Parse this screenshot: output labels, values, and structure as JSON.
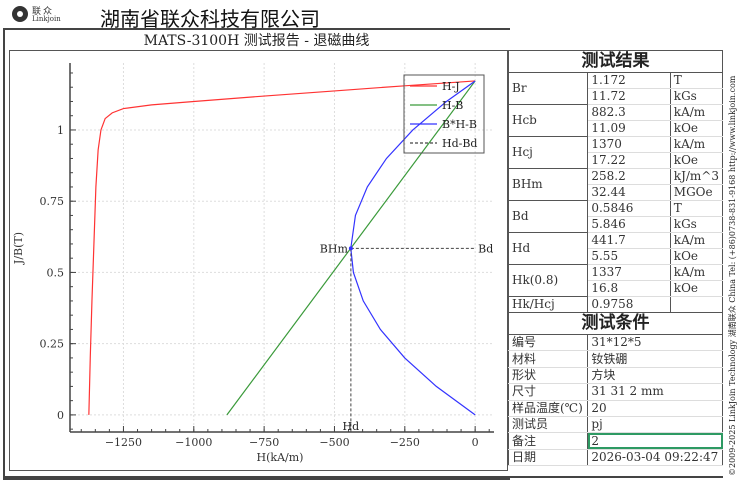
{
  "header": {
    "logo_cn": "联众",
    "logo_en": "Linkjoin",
    "company": "湖南省联众科技有限公司"
  },
  "report_title": "MATS-3100H 测试报告 - 退磁曲线",
  "side_text": "©2009-2025 LinkJoin Technology 湖南联众 China Tel: (+86)0738-831-9168 http://www.linkjoin.com",
  "results": {
    "title": "测试结果",
    "rows": [
      {
        "label": "Br",
        "v1": "1.172",
        "u1": "T",
        "v2": "11.72",
        "u2": "kGs"
      },
      {
        "label": "Hcb",
        "v1": "882.3",
        "u1": "kA/m",
        "v2": "11.09",
        "u2": "kOe"
      },
      {
        "label": "Hcj",
        "v1": "1370",
        "u1": "kA/m",
        "v2": "17.22",
        "u2": "kOe"
      },
      {
        "label": "BHm",
        "v1": "258.2",
        "u1": "kJ/m^3",
        "v2": "32.44",
        "u2": "MGOe"
      },
      {
        "label": "Bd",
        "v1": "0.5846",
        "u1": "T",
        "v2": "5.846",
        "u2": "kGs"
      },
      {
        "label": "Hd",
        "v1": "441.7",
        "u1": "kA/m",
        "v2": "5.55",
        "u2": "kOe"
      },
      {
        "label": "Hk(0.8)",
        "v1": "1337",
        "u1": "kA/m",
        "v2": "16.8",
        "u2": "kOe"
      }
    ],
    "ratio": {
      "label": "Hk/Hcj",
      "value": "0.9758"
    }
  },
  "conditions": {
    "title": "测试条件",
    "rows": [
      {
        "label": "编号",
        "value": "31*12*5"
      },
      {
        "label": "材料",
        "value": "钕铁硼"
      },
      {
        "label": "形状",
        "value": "方块"
      },
      {
        "label": "尺寸",
        "value": "31 31 2 mm"
      },
      {
        "label": "样品温度(℃)",
        "value": "20"
      },
      {
        "label": "测试员",
        "value": "pj"
      },
      {
        "label": "备注",
        "value": "2"
      },
      {
        "label": "日期",
        "value": "2026-03-04 09:22:47"
      }
    ]
  },
  "chart_data": {
    "type": "line",
    "xlabel": "H(kA/m)",
    "ylabel": "J/B(T)",
    "xlim": [
      -1440,
      67
    ],
    "ylim": [
      -0.06,
      1.235
    ],
    "xticks": [
      -1250,
      -1000,
      -750,
      -500,
      -250,
      0
    ],
    "xtick_labels": [
      "−1250",
      "−1000",
      "−750",
      "−500",
      "−250",
      "0"
    ],
    "yticks": [
      0,
      0.25,
      0.5,
      0.75,
      1
    ],
    "ytick_labels": [
      "0",
      "0.25",
      "0.5",
      "0.75",
      "1"
    ],
    "grid": true,
    "legend_position": "top-right",
    "series": [
      {
        "name": "H-J",
        "color": "#ff3333",
        "points": [
          [
            0,
            1.172
          ],
          [
            -250,
            1.155
          ],
          [
            -500,
            1.137
          ],
          [
            -750,
            1.119
          ],
          [
            -1000,
            1.1
          ],
          [
            -1150,
            1.088
          ],
          [
            -1250,
            1.075
          ],
          [
            -1290,
            1.06
          ],
          [
            -1315,
            1.04
          ],
          [
            -1330,
            1.0
          ],
          [
            -1340,
            0.93
          ],
          [
            -1348,
            0.8
          ],
          [
            -1355,
            0.6
          ],
          [
            -1362,
            0.4
          ],
          [
            -1368,
            0.2
          ],
          [
            -1373,
            0
          ]
        ]
      },
      {
        "name": "H-B",
        "color": "#3a9a3a",
        "points": [
          [
            -882.3,
            0
          ],
          [
            0,
            1.172
          ]
        ]
      },
      {
        "name": "B*H-B",
        "color": "#3333ff",
        "points": [
          [
            0,
            0
          ],
          [
            -138.1,
            0.1
          ],
          [
            -250.3,
            0.2
          ],
          [
            -336.9,
            0.3
          ],
          [
            -397.7,
            0.4
          ],
          [
            -432.7,
            0.5
          ],
          [
            -442,
            0.5846
          ],
          [
            -425.5,
            0.7
          ],
          [
            -383.2,
            0.8
          ],
          [
            -315.2,
            0.9
          ],
          [
            -221.5,
            1.0
          ],
          [
            -102,
            1.1
          ],
          [
            0,
            1.172
          ]
        ]
      },
      {
        "name": "Hd-Bd",
        "color": "#444444",
        "dashed": true,
        "point": [
          -441.7,
          0.5846
        ]
      }
    ],
    "annotations": {
      "bhm": "BHm",
      "bd": "Bd",
      "hd": "Hd"
    }
  }
}
